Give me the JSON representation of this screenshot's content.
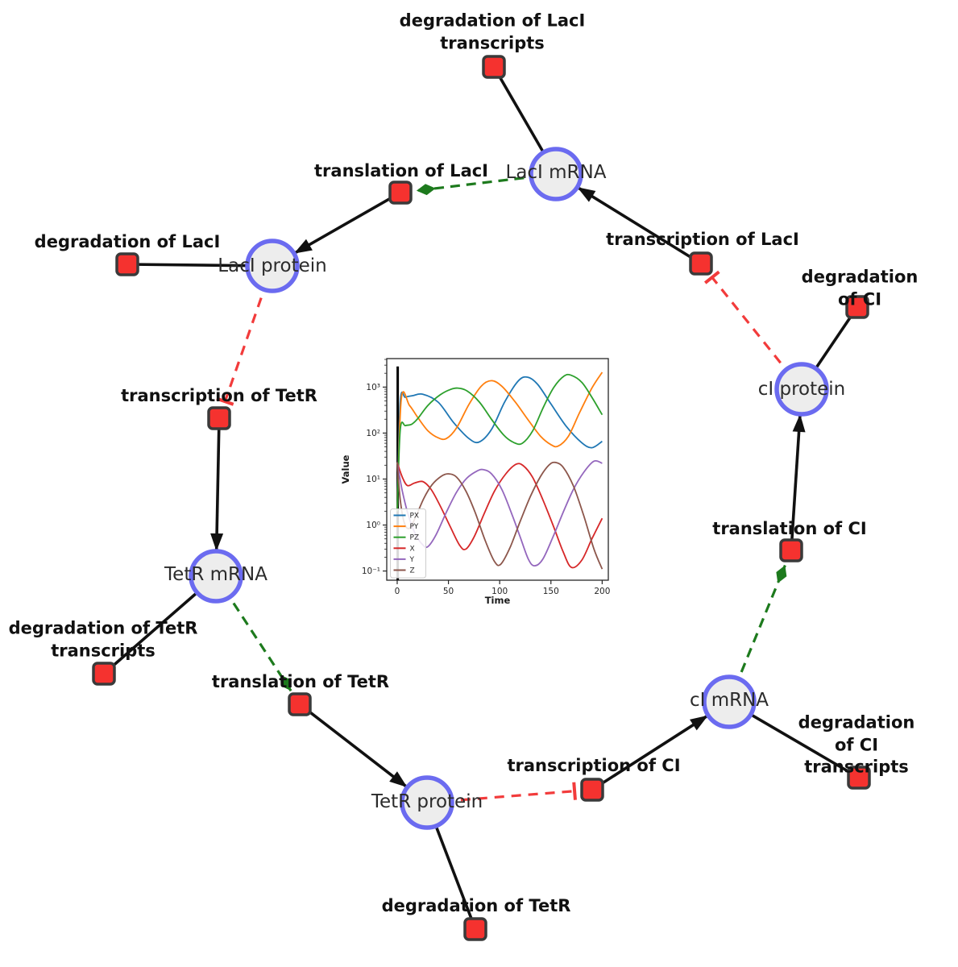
{
  "network": {
    "species_style": {
      "fill": "#ededed",
      "border": "#6b6bf0"
    },
    "reaction_style": {
      "fill": "#f5322f",
      "border": "#3a3a3a"
    },
    "edge_colors": {
      "reaction_flow": "#111111",
      "modifier": "#1d7a1d",
      "inhibition": "#f23b3b"
    },
    "species": [
      {
        "label": "LacI mRNA"
      },
      {
        "label": "LacI protein"
      },
      {
        "label": "TetR mRNA"
      },
      {
        "label": "TetR protein"
      },
      {
        "label": "cI mRNA"
      },
      {
        "label": "cI protein"
      }
    ],
    "reactions": [
      {
        "label": "degradation of LacI\ntranscripts"
      },
      {
        "label": "translation of LacI"
      },
      {
        "label": "transcription of LacI"
      },
      {
        "label": "degradation of CI"
      },
      {
        "label": "degradation of LacI"
      },
      {
        "label": "transcription of TetR"
      },
      {
        "label": "degradation of TetR\ntranscripts"
      },
      {
        "label": "translation of TetR"
      },
      {
        "label": "degradation of TetR"
      },
      {
        "label": "transcription of CI"
      },
      {
        "label": "degradation of CI\ntranscripts"
      },
      {
        "label": "translation of CI"
      }
    ],
    "edges": [
      {
        "from": "LacI mRNA",
        "to": "degradation of LacI transcripts",
        "type": "reactant",
        "style": "solid-black"
      },
      {
        "from": "LacI mRNA",
        "to": "translation of LacI",
        "type": "modifier",
        "style": "dashed-green-diamond"
      },
      {
        "from": "translation of LacI",
        "to": "LacI protein",
        "type": "product",
        "style": "solid-black-arrow"
      },
      {
        "from": "LacI protein",
        "to": "degradation of LacI",
        "type": "reactant",
        "style": "solid-black"
      },
      {
        "from": "LacI protein",
        "to": "transcription of TetR",
        "type": "inhibition",
        "style": "dashed-red-tee"
      },
      {
        "from": "transcription of TetR",
        "to": "TetR mRNA",
        "type": "product",
        "style": "solid-black-arrow"
      },
      {
        "from": "TetR mRNA",
        "to": "degradation of TetR transcripts",
        "type": "reactant",
        "style": "solid-black"
      },
      {
        "from": "TetR mRNA",
        "to": "translation of TetR",
        "type": "modifier",
        "style": "dashed-green-diamond"
      },
      {
        "from": "translation of TetR",
        "to": "TetR protein",
        "type": "product",
        "style": "solid-black-arrow"
      },
      {
        "from": "TetR protein",
        "to": "degradation of TetR",
        "type": "reactant",
        "style": "solid-black"
      },
      {
        "from": "TetR protein",
        "to": "transcription of CI",
        "type": "inhibition",
        "style": "dashed-red-tee"
      },
      {
        "from": "transcription of CI",
        "to": "cI mRNA",
        "type": "product",
        "style": "solid-black-arrow"
      },
      {
        "from": "cI mRNA",
        "to": "degradation of CI transcripts",
        "type": "reactant",
        "style": "solid-black"
      },
      {
        "from": "cI mRNA",
        "to": "translation of CI",
        "type": "modifier",
        "style": "dashed-green-diamond"
      },
      {
        "from": "translation of CI",
        "to": "cI protein",
        "type": "product",
        "style": "solid-black-arrow"
      },
      {
        "from": "cI protein",
        "to": "degradation of CI",
        "type": "reactant",
        "style": "solid-black"
      },
      {
        "from": "cI protein",
        "to": "transcription of LacI",
        "type": "inhibition",
        "style": "dashed-red-tee"
      },
      {
        "from": "transcription of LacI",
        "to": "LacI mRNA",
        "type": "product",
        "style": "solid-black-arrow"
      }
    ]
  },
  "chart_data": {
    "type": "line",
    "title": "",
    "xlabel": "Time",
    "ylabel": "Value",
    "x_scale": "linear",
    "y_scale": "log",
    "xlim": [
      -10.2,
      206
    ],
    "ylog_lim": [
      -1.2,
      3.62
    ],
    "x_ticks": [
      0,
      50,
      100,
      150,
      200
    ],
    "y_ticks": [
      {
        "exp": -1,
        "label": "10⁻¹"
      },
      {
        "exp": 0,
        "label": "10⁰"
      },
      {
        "exp": 1,
        "label": "10¹"
      },
      {
        "exp": 2,
        "label": "10²"
      },
      {
        "exp": 3,
        "label": "10³"
      }
    ],
    "grid": false,
    "legend_position": "lower left",
    "annotations": [
      {
        "type": "vline",
        "x": 0.5,
        "ylog_from": -1.2,
        "ylog_to": 3.45,
        "color": "#000000",
        "width": 3
      }
    ],
    "series": [
      {
        "name": "PX",
        "color": "#1f77b4",
        "points": [
          [
            0,
            2
          ],
          [
            3,
            480
          ],
          [
            8,
            600
          ],
          [
            15,
            650
          ],
          [
            25,
            700
          ],
          [
            40,
            470
          ],
          [
            55,
            170
          ],
          [
            70,
            76
          ],
          [
            80,
            64
          ],
          [
            92,
            120
          ],
          [
            105,
            480
          ],
          [
            118,
            1350
          ],
          [
            127,
            1650
          ],
          [
            137,
            1150
          ],
          [
            150,
            430
          ],
          [
            165,
            140
          ],
          [
            180,
            62
          ],
          [
            190,
            48
          ],
          [
            200,
            66
          ]
        ]
      },
      {
        "name": "PY",
        "color": "#ff7f0e",
        "points": [
          [
            0,
            2
          ],
          [
            4,
            560
          ],
          [
            12,
            400
          ],
          [
            20,
            220
          ],
          [
            30,
            112
          ],
          [
            40,
            79
          ],
          [
            48,
            76
          ],
          [
            58,
            130
          ],
          [
            70,
            420
          ],
          [
            82,
            1050
          ],
          [
            92,
            1380
          ],
          [
            102,
            1050
          ],
          [
            115,
            480
          ],
          [
            128,
            190
          ],
          [
            140,
            85
          ],
          [
            150,
            56
          ],
          [
            157,
            52
          ],
          [
            167,
            85
          ],
          [
            178,
            280
          ],
          [
            190,
            950
          ],
          [
            200,
            2100
          ]
        ]
      },
      {
        "name": "PZ",
        "color": "#2ca02c",
        "points": [
          [
            0,
            2
          ],
          [
            3,
            120
          ],
          [
            8,
            145
          ],
          [
            14,
            155
          ],
          [
            20,
            205
          ],
          [
            30,
            400
          ],
          [
            42,
            680
          ],
          [
            52,
            890
          ],
          [
            59,
            950
          ],
          [
            68,
            830
          ],
          [
            80,
            480
          ],
          [
            92,
            200
          ],
          [
            104,
            90
          ],
          [
            114,
            62
          ],
          [
            122,
            60
          ],
          [
            132,
            110
          ],
          [
            143,
            380
          ],
          [
            153,
            1000
          ],
          [
            163,
            1750
          ],
          [
            170,
            1800
          ],
          [
            180,
            1280
          ],
          [
            190,
            600
          ],
          [
            200,
            250
          ]
        ]
      },
      {
        "name": "X",
        "color": "#d62728",
        "points": [
          [
            0,
            23
          ],
          [
            5,
            11
          ],
          [
            10,
            7.2
          ],
          [
            17,
            8.2
          ],
          [
            25,
            8.8
          ],
          [
            33,
            6
          ],
          [
            42,
            2.6
          ],
          [
            52,
            0.9
          ],
          [
            61,
            0.36
          ],
          [
            67,
            0.3
          ],
          [
            75,
            0.55
          ],
          [
            85,
            1.8
          ],
          [
            95,
            5.5
          ],
          [
            106,
            13
          ],
          [
            116,
            21
          ],
          [
            123,
            19.5
          ],
          [
            132,
            11
          ],
          [
            142,
            3.6
          ],
          [
            152,
            1
          ],
          [
            162,
            0.26
          ],
          [
            170,
            0.12
          ],
          [
            180,
            0.17
          ],
          [
            190,
            0.5
          ],
          [
            200,
            1.4
          ]
        ]
      },
      {
        "name": "Y",
        "color": "#9467bd",
        "points": [
          [
            0,
            23
          ],
          [
            5,
            5.5
          ],
          [
            11,
            1.6
          ],
          [
            18,
            0.62
          ],
          [
            25,
            0.37
          ],
          [
            30,
            0.34
          ],
          [
            38,
            0.62
          ],
          [
            48,
            1.9
          ],
          [
            58,
            5.2
          ],
          [
            68,
            10.5
          ],
          [
            78,
            15
          ],
          [
            84,
            16
          ],
          [
            92,
            13
          ],
          [
            102,
            6
          ],
          [
            112,
            1.7
          ],
          [
            120,
            0.55
          ],
          [
            128,
            0.18
          ],
          [
            134,
            0.13
          ],
          [
            142,
            0.18
          ],
          [
            152,
            0.55
          ],
          [
            162,
            1.9
          ],
          [
            172,
            6
          ],
          [
            182,
            14
          ],
          [
            192,
            24.5
          ],
          [
            200,
            22
          ]
        ]
      },
      {
        "name": "Z",
        "color": "#8c564b",
        "points": [
          [
            0,
            23
          ],
          [
            3,
            3.5
          ],
          [
            7,
            1.1
          ],
          [
            12,
            0.85
          ],
          [
            18,
            1.5
          ],
          [
            26,
            3.8
          ],
          [
            34,
            7.5
          ],
          [
            43,
            11.5
          ],
          [
            50,
            13
          ],
          [
            58,
            11
          ],
          [
            67,
            5.5
          ],
          [
            76,
            1.9
          ],
          [
            86,
            0.45
          ],
          [
            95,
            0.16
          ],
          [
            101,
            0.14
          ],
          [
            110,
            0.32
          ],
          [
            120,
            1.2
          ],
          [
            130,
            4.2
          ],
          [
            140,
            11.5
          ],
          [
            148,
            20
          ],
          [
            154,
            23
          ],
          [
            162,
            18
          ],
          [
            172,
            7
          ],
          [
            182,
            1.6
          ],
          [
            192,
            0.3
          ],
          [
            200,
            0.11
          ]
        ]
      }
    ]
  }
}
